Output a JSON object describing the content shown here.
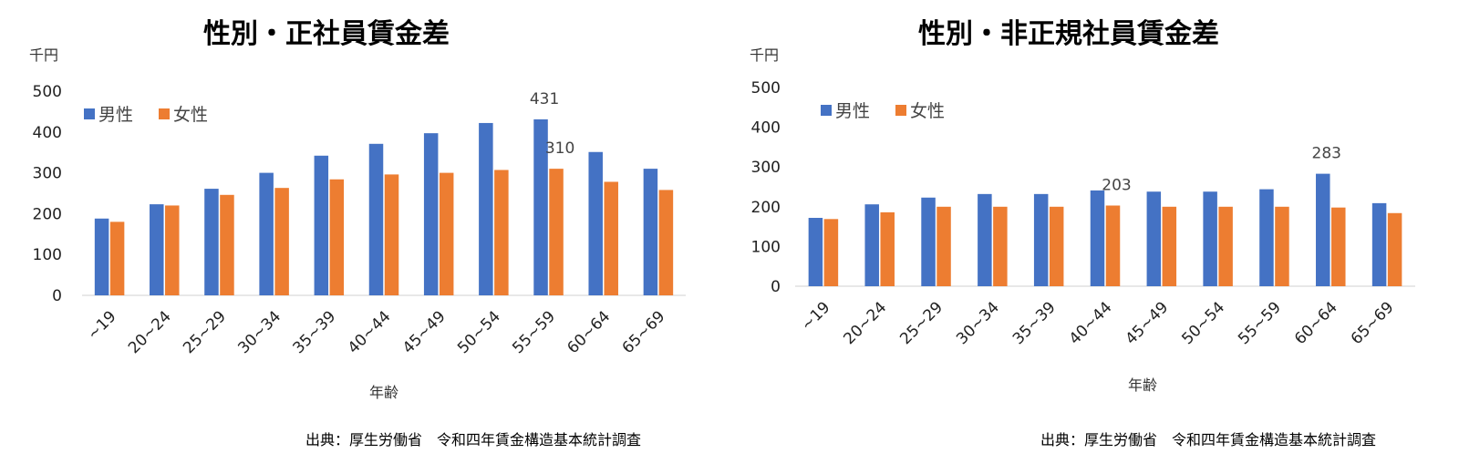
{
  "chart_data": [
    {
      "type": "bar",
      "title": "性別・正社員賃金差",
      "unit": "千円",
      "xlabel": "年齢",
      "source": "出典：厚生労働省　令和四年賃金構造基本統計調査",
      "categories": [
        "~19",
        "20~24",
        "25~29",
        "30~34",
        "35~39",
        "40~44",
        "45~49",
        "50~54",
        "55~59",
        "60~64",
        "65~69"
      ],
      "series": [
        {
          "name": "男性",
          "color": "#4472C4",
          "values": [
            188,
            223,
            261,
            300,
            342,
            371,
            397,
            422,
            431,
            351,
            310
          ]
        },
        {
          "name": "女性",
          "color": "#ED7D31",
          "values": [
            180,
            220,
            246,
            263,
            284,
            296,
            300,
            307,
            310,
            278,
            258
          ]
        }
      ],
      "ylim": [
        0,
        500
      ],
      "yticks": [
        0,
        100,
        200,
        300,
        400,
        500
      ],
      "legend": "top-left",
      "grid": false,
      "annotations": [
        {
          "series": 0,
          "index": 8,
          "text": "431"
        },
        {
          "series": 1,
          "index": 8,
          "text": "310"
        }
      ]
    },
    {
      "type": "bar",
      "title": "性別・非正規社員賃金差",
      "unit": "千円",
      "xlabel": "年齢",
      "source": "出典：厚生労働省　令和四年賃金構造基本統計調査",
      "categories": [
        "~19",
        "20~24",
        "25~29",
        "30~34",
        "35~39",
        "40~44",
        "45~49",
        "50~54",
        "55~59",
        "60~64",
        "65~69"
      ],
      "series": [
        {
          "name": "男性",
          "color": "#4472C4",
          "values": [
            172,
            206,
            223,
            232,
            232,
            241,
            238,
            238,
            244,
            283,
            209
          ]
        },
        {
          "name": "女性",
          "color": "#ED7D31",
          "values": [
            169,
            186,
            200,
            200,
            200,
            203,
            200,
            200,
            200,
            198,
            184
          ]
        }
      ],
      "ylim": [
        0,
        500
      ],
      "yticks": [
        0,
        100,
        200,
        300,
        400,
        500
      ],
      "legend": "top-left",
      "grid": false,
      "annotations": [
        {
          "series": 1,
          "index": 5,
          "text": "203"
        },
        {
          "series": 0,
          "index": 9,
          "text": "283"
        }
      ]
    }
  ]
}
